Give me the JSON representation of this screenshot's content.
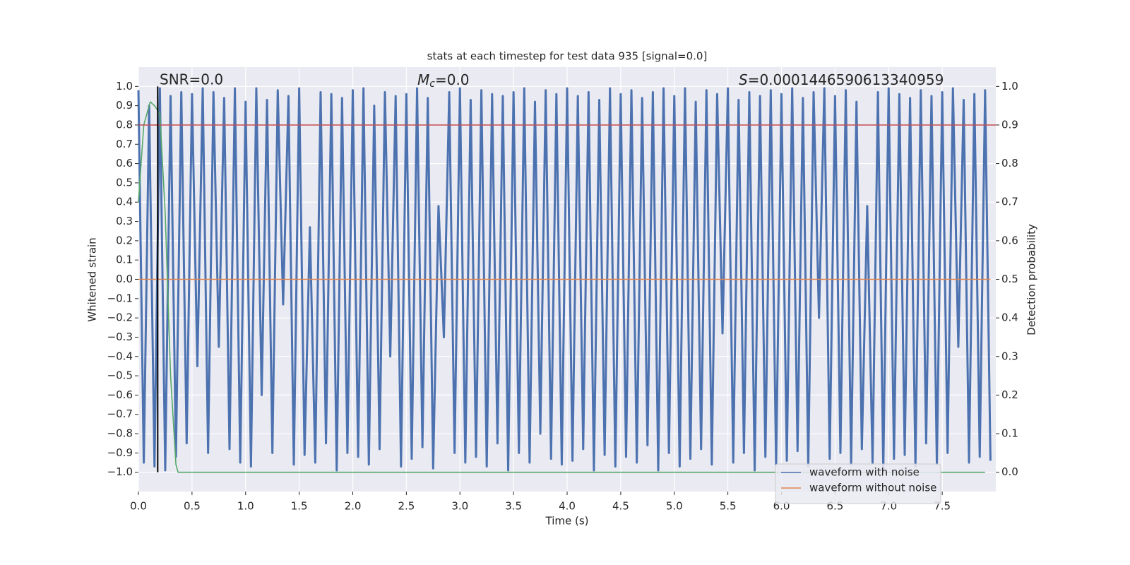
{
  "chart_data": {
    "type": "line",
    "title": "stats at each timestep for test data 935 [signal=0.0]",
    "xlabel": "Time (s)",
    "ylabel": "Whitened strain",
    "y2label": "Detection probability",
    "annotations": {
      "snr": "SNR=0.0",
      "mc": {
        "symbol": "M",
        "subscript": "c",
        "text": "=0.0"
      },
      "s": {
        "symbol": "S",
        "text": "=0.0001446590613340959"
      }
    },
    "xlim": [
      0,
      8
    ],
    "ylim": [
      -1.1,
      1.1
    ],
    "y2lim": [
      -0.05,
      1.05
    ],
    "grid": true,
    "legend": "lower right",
    "xticks": [
      {
        "value": 0,
        "label": "0.0"
      },
      {
        "value": 0.5,
        "label": "0.5"
      },
      {
        "value": 1,
        "label": "1.0"
      },
      {
        "value": 1.5,
        "label": "1.5"
      },
      {
        "value": 2,
        "label": "2.0"
      },
      {
        "value": 2.5,
        "label": "2.5"
      },
      {
        "value": 3,
        "label": "3.0"
      },
      {
        "value": 3.5,
        "label": "3.5"
      },
      {
        "value": 4,
        "label": "4.0"
      },
      {
        "value": 4.5,
        "label": "4.5"
      },
      {
        "value": 5,
        "label": "5.0"
      },
      {
        "value": 5.5,
        "label": "5.5"
      },
      {
        "value": 6,
        "label": "6.0"
      },
      {
        "value": 6.5,
        "label": "6.5"
      },
      {
        "value": 7,
        "label": "7.0"
      },
      {
        "value": 7.5,
        "label": "7.5"
      }
    ],
    "yticks": [
      {
        "value": 1,
        "label": "1.0"
      },
      {
        "value": 0.9,
        "label": "0.9"
      },
      {
        "value": 0.8,
        "label": "0.8"
      },
      {
        "value": 0.7,
        "label": "0.7"
      },
      {
        "value": 0.6,
        "label": "0.6"
      },
      {
        "value": 0.5,
        "label": "0.5"
      },
      {
        "value": 0.4,
        "label": "0.4"
      },
      {
        "value": 0.3,
        "label": "0.3"
      },
      {
        "value": 0.2,
        "label": "0.2"
      },
      {
        "value": 0.1,
        "label": "0.1"
      },
      {
        "value": 0,
        "label": "0.0"
      },
      {
        "value": -0.1,
        "label": "−0.1"
      },
      {
        "value": -0.2,
        "label": "−0.2"
      },
      {
        "value": -0.3,
        "label": "−0.3"
      },
      {
        "value": -0.4,
        "label": "−0.4"
      },
      {
        "value": -0.5,
        "label": "−0.5"
      },
      {
        "value": -0.6,
        "label": "−0.6"
      },
      {
        "value": -0.7,
        "label": "−0.7"
      },
      {
        "value": -0.8,
        "label": "−0.8"
      },
      {
        "value": -0.9,
        "label": "−0.9"
      },
      {
        "value": -1,
        "label": "−1.0"
      }
    ],
    "y2ticks": [
      {
        "value": 1,
        "label": "1.0"
      },
      {
        "value": 0.9,
        "label": "0.9"
      },
      {
        "value": 0.8,
        "label": "0.8"
      },
      {
        "value": 0.7,
        "label": "0.7"
      },
      {
        "value": 0.6,
        "label": "0.6"
      },
      {
        "value": 0.5,
        "label": "0.5"
      },
      {
        "value": 0.4,
        "label": "0.4"
      },
      {
        "value": 0.3,
        "label": "0.3"
      },
      {
        "value": 0.2,
        "label": "0.2"
      },
      {
        "value": 0.1,
        "label": "0.1"
      },
      {
        "value": 0,
        "label": "0.0"
      }
    ],
    "series": [
      {
        "name": "waveform with noise",
        "color": "#4c72b0",
        "x": [
          0,
          0.05,
          0.1,
          0.15,
          0.2,
          0.25,
          0.3,
          0.35,
          0.4,
          0.45,
          0.5,
          0.55,
          0.6,
          0.65,
          0.7,
          0.75,
          0.8,
          0.85,
          0.9,
          0.95,
          1,
          1.05,
          1.1,
          1.15,
          1.2,
          1.25,
          1.3,
          1.35,
          1.4,
          1.45,
          1.5,
          1.55,
          1.6,
          1.65,
          1.7,
          1.75,
          1.8,
          1.85,
          1.9,
          1.95,
          2,
          2.05,
          2.1,
          2.15,
          2.2,
          2.25,
          2.3,
          2.35,
          2.4,
          2.45,
          2.5,
          2.55,
          2.6,
          2.65,
          2.7,
          2.75,
          2.8,
          2.85,
          2.9,
          2.95,
          3,
          3.05,
          3.1,
          3.15,
          3.2,
          3.25,
          3.3,
          3.35,
          3.4,
          3.45,
          3.5,
          3.55,
          3.6,
          3.65,
          3.7,
          3.75,
          3.8,
          3.85,
          3.9,
          3.95,
          4,
          4.05,
          4.1,
          4.15,
          4.2,
          4.25,
          4.3,
          4.35,
          4.4,
          4.45,
          4.5,
          4.55,
          4.6,
          4.65,
          4.7,
          4.75,
          4.8,
          4.85,
          4.9,
          4.95,
          5,
          5.05,
          5.1,
          5.15,
          5.2,
          5.25,
          5.3,
          5.35,
          5.4,
          5.45,
          5.5,
          5.55,
          5.6,
          5.65,
          5.7,
          5.75,
          5.8,
          5.85,
          5.9,
          5.95,
          6,
          6.05,
          6.1,
          6.15,
          6.2,
          6.25,
          6.3,
          6.35,
          6.4,
          6.45,
          6.5,
          6.55,
          6.6,
          6.65,
          6.7,
          6.75,
          6.8,
          6.85,
          6.9,
          6.95,
          7,
          7.05,
          7.1,
          7.15,
          7.2,
          7.25,
          7.3,
          7.35,
          7.4,
          7.45,
          7.5,
          7.55,
          7.6,
          7.65,
          7.7,
          7.75,
          7.8,
          7.85,
          7.9,
          7.95
        ],
        "values": [
          0.98,
          -0.95,
          0.9,
          -0.97,
          0.99,
          -0.99,
          0.95,
          -0.92,
          0.97,
          -0.85,
          0.96,
          -0.45,
          0.99,
          -0.9,
          0.97,
          -0.35,
          0.94,
          -0.88,
          0.99,
          -0.95,
          0.92,
          -0.97,
          0.99,
          -0.6,
          0.93,
          -0.9,
          0.98,
          -0.13,
          0.95,
          -0.96,
          0.99,
          -0.91,
          0.27,
          -0.95,
          0.97,
          -0.85,
          0.96,
          -0.99,
          0.94,
          -0.9,
          0.98,
          -0.92,
          0.99,
          -0.96,
          0.9,
          -0.88,
          0.97,
          -0.4,
          0.95,
          -0.97,
          0.96,
          -0.93,
          0.99,
          -0.87,
          0.94,
          -0.98,
          0.38,
          -0.3,
          0.97,
          -0.9,
          0.99,
          -0.95,
          0.93,
          -0.92,
          0.98,
          -0.97,
          0.96,
          -0.85,
          0.95,
          -0.99,
          0.97,
          -0.9,
          0.99,
          -0.95,
          0.92,
          -0.8,
          0.98,
          -0.93,
          0.96,
          -0.96,
          0.99,
          -0.94,
          0.95,
          -0.88,
          0.97,
          -0.99,
          0.93,
          -0.91,
          0.99,
          -0.97,
          0.96,
          -0.92,
          0.98,
          -0.95,
          0.94,
          -0.86,
          0.97,
          -0.99,
          0.99,
          -0.9,
          0.95,
          -0.97,
          0.99,
          -0.93,
          0.92,
          -0.88,
          0.98,
          -0.96,
          0.96,
          -0.28,
          0.99,
          -0.95,
          0.93,
          -0.9,
          0.97,
          -0.99,
          0.95,
          -0.92,
          0.98,
          -0.96,
          0.96,
          -0.94,
          0.99,
          -0.89,
          0.94,
          -0.97,
          0.97,
          -0.2,
          0.99,
          -0.93,
          0.95,
          -0.9,
          0.98,
          -0.96,
          0.92,
          -0.88,
          0.38,
          -0.95,
          0.97,
          -0.99,
          0.99,
          -0.93,
          0.96,
          -0.91,
          0.94,
          -0.97,
          0.98,
          -0.85,
          0.95,
          -0.96,
          0.97,
          -0.9,
          0.99,
          -0.35,
          0.93,
          -0.95,
          0.96,
          -0.92,
          0.98,
          -0.94
        ]
      },
      {
        "name": "waveform without noise",
        "color": "#dd8452",
        "x": [
          0,
          7.95
        ],
        "values": [
          0,
          0
        ]
      },
      {
        "color": "#55a868",
        "axis": "y2",
        "x": [
          0,
          0.05,
          0.11,
          0.15,
          0.2,
          0.25,
          0.3,
          0.35,
          0.37,
          7.9
        ],
        "values": [
          0.7,
          0.9,
          0.96,
          0.95,
          0.93,
          0.67,
          0.25,
          0.02,
          0,
          0
        ]
      }
    ],
    "hline": {
      "axis": "y2",
      "value": 0.9,
      "color": "#c44e52"
    },
    "vline": {
      "x": 0.18,
      "ymin": -1,
      "ymax": 1,
      "color": "#000000"
    }
  }
}
